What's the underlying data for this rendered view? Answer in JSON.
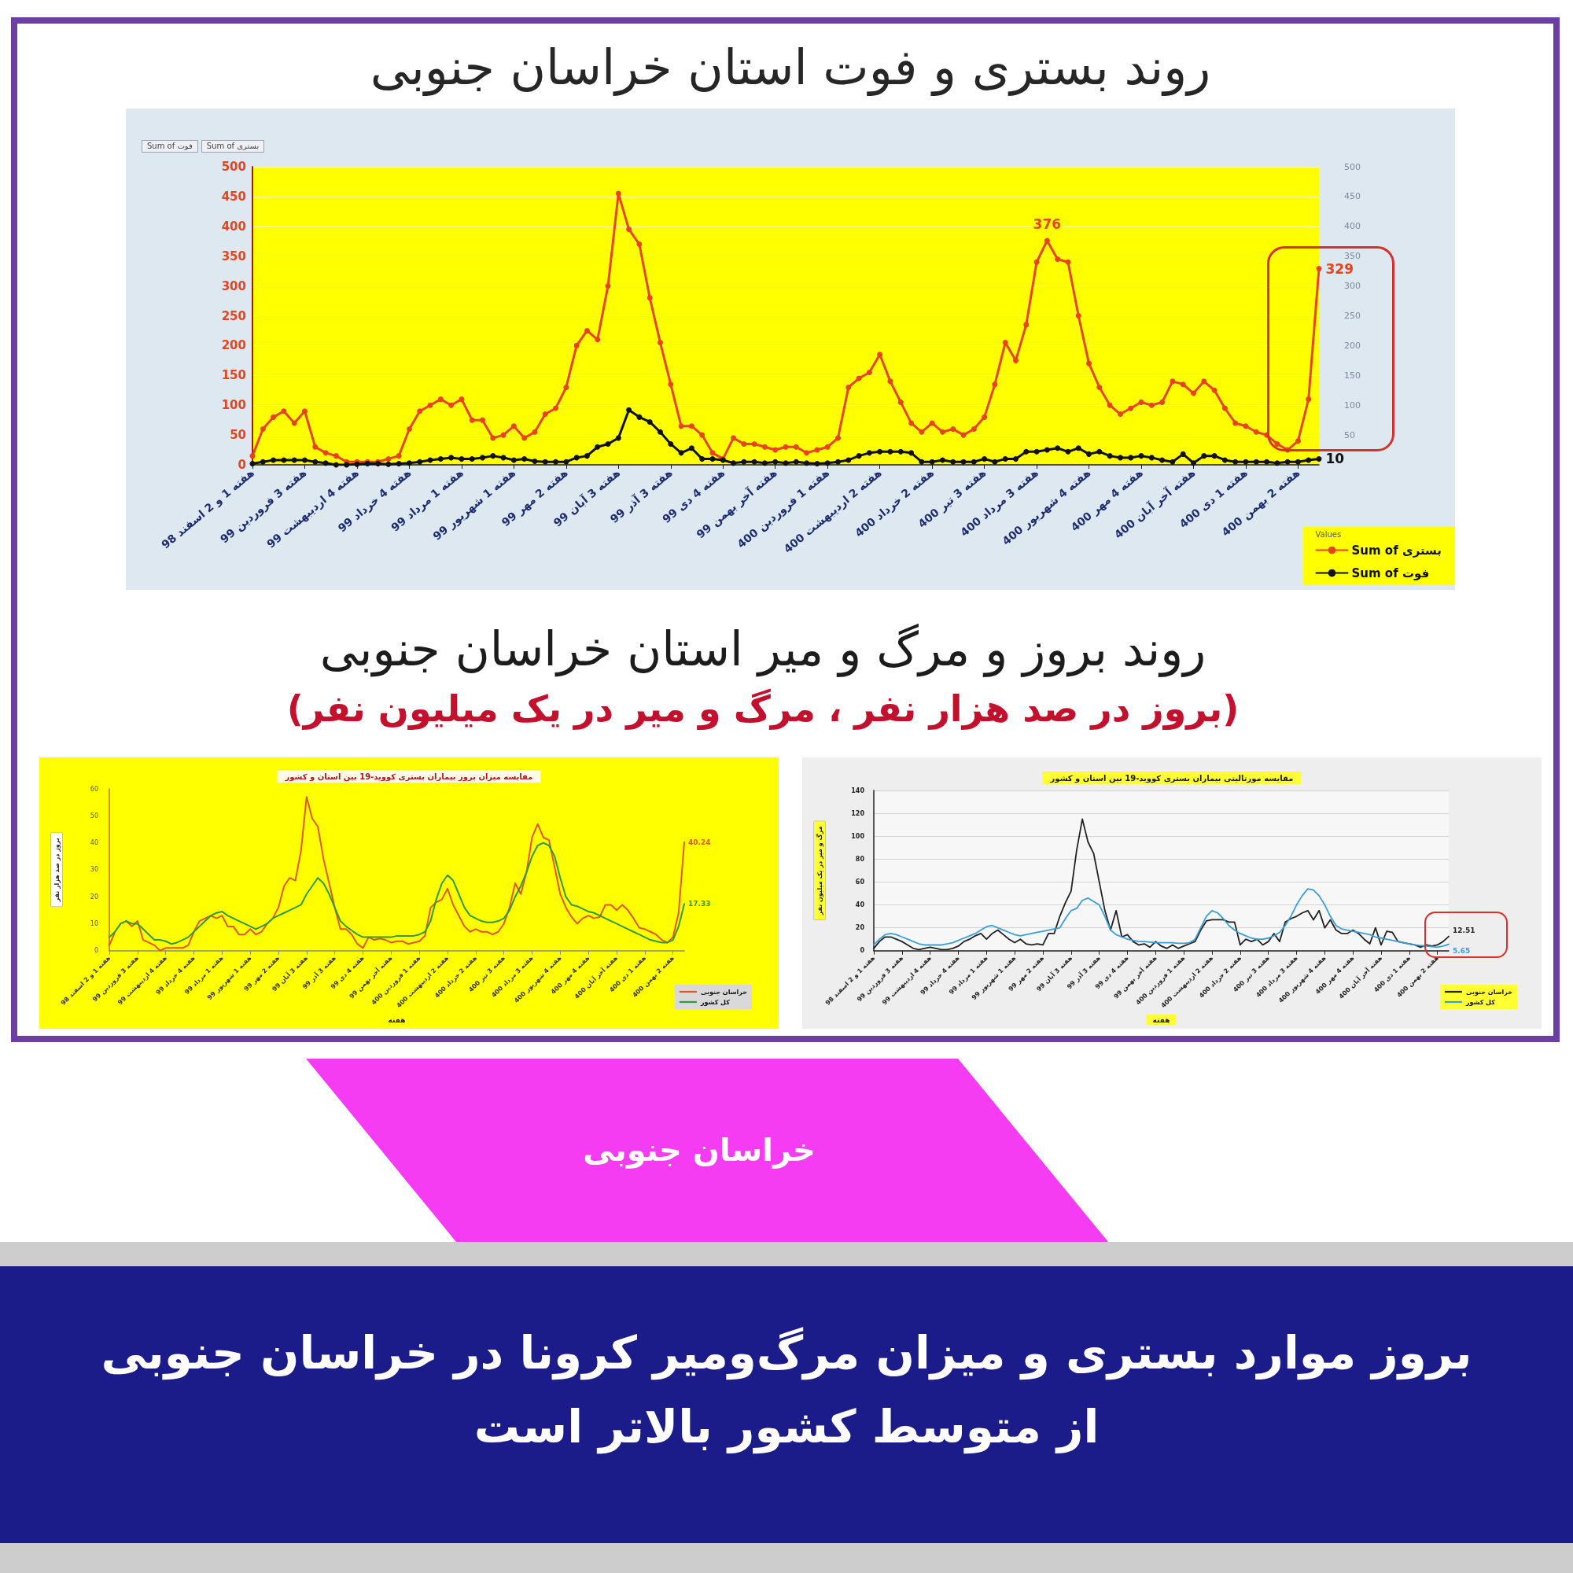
{
  "chart_data": [
    {
      "type": "line",
      "title": "روند بستری و فوت استان خراسان جنوبی",
      "annotations": [
        "Sum of فوت",
        "Sum of بستری"
      ],
      "categories": [
        "هفته 1 و 2 اسفند 98",
        null,
        null,
        null,
        null,
        "هفته 3 فروردین 99",
        null,
        null,
        null,
        null,
        "هفته 4 اردیبهشت 99",
        null,
        null,
        null,
        null,
        "هفته 4 خرداد 99",
        null,
        null,
        null,
        null,
        "هفته 1 مرداد 99",
        null,
        null,
        null,
        null,
        "هفته 1 شهریور 99",
        null,
        null,
        null,
        null,
        "هفته 2 مهر 99",
        null,
        null,
        null,
        null,
        "هفته 3 آبان 99",
        null,
        null,
        null,
        null,
        "هفته 3 آذر 99",
        null,
        null,
        null,
        null,
        "هفته 4 دی 99",
        null,
        null,
        null,
        null,
        "هفته آخر بهمن 99",
        null,
        null,
        null,
        null,
        "هفته 1 فروردین 400",
        null,
        null,
        null,
        null,
        "هفته 2 اردیبهشت 400",
        null,
        null,
        null,
        null,
        "هفته 2 خرداد 400",
        null,
        null,
        null,
        null,
        "هفته 3 تیر 400",
        null,
        null,
        null,
        null,
        "هفته 3 مرداد 400",
        null,
        null,
        null,
        null,
        "هفته 4 شهریور 400",
        null,
        null,
        null,
        null,
        "هفته 4 مهر 400",
        null,
        null,
        null,
        null,
        "هفته آخر آبان 400",
        null,
        null,
        null,
        null,
        "هفته 1 دی 400",
        null,
        null,
        null,
        null,
        "هفته 2 بهمن 400",
        null,
        null
      ],
      "series": [
        {
          "name": "Sum of بستری",
          "color": "#e8431c",
          "values": [
            15,
            60,
            80,
            90,
            70,
            90,
            30,
            20,
            15,
            5,
            5,
            5,
            5,
            10,
            15,
            60,
            90,
            100,
            110,
            100,
            110,
            75,
            75,
            45,
            50,
            65,
            45,
            55,
            85,
            95,
            130,
            200,
            225,
            210,
            300,
            455,
            395,
            370,
            280,
            205,
            135,
            65,
            65,
            50,
            20,
            10,
            45,
            35,
            35,
            30,
            25,
            30,
            30,
            20,
            25,
            30,
            45,
            130,
            145,
            155,
            185,
            140,
            105,
            70,
            55,
            70,
            55,
            60,
            50,
            60,
            80,
            135,
            205,
            175,
            235,
            340,
            376,
            345,
            340,
            250,
            170,
            130,
            100,
            85,
            95,
            105,
            100,
            105,
            140,
            135,
            120,
            140,
            125,
            95,
            70,
            65,
            55,
            50,
            35,
            25,
            40,
            110,
            329
          ],
          "value_labels": [
            null,
            null,
            null,
            null,
            null,
            null,
            null,
            null,
            null,
            null,
            null,
            null,
            null,
            null,
            null,
            null,
            null,
            null,
            null,
            null,
            null,
            null,
            null,
            null,
            null,
            null,
            null,
            null,
            null,
            null,
            null,
            null,
            null,
            null,
            null,
            null,
            null,
            null,
            null,
            null,
            null,
            null,
            null,
            null,
            null,
            null,
            null,
            null,
            null,
            null,
            null,
            null,
            null,
            null,
            null,
            null,
            null,
            null,
            null,
            null,
            null,
            null,
            null,
            null,
            null,
            null,
            null,
            null,
            null,
            null,
            null,
            null,
            null,
            null,
            null,
            null,
            "376",
            null,
            null,
            null,
            null,
            null,
            null,
            null,
            null,
            null,
            null,
            null,
            null,
            null,
            null,
            null,
            null,
            null,
            null,
            null,
            null,
            null,
            null,
            null,
            null,
            null,
            "329"
          ]
        },
        {
          "name": "Sum of فوت",
          "color": "#111111",
          "values": [
            2,
            5,
            8,
            8,
            8,
            8,
            5,
            3,
            0,
            0,
            1,
            2,
            2,
            1,
            2,
            3,
            5,
            8,
            10,
            12,
            10,
            10,
            12,
            15,
            12,
            8,
            10,
            6,
            5,
            5,
            5,
            12,
            15,
            30,
            35,
            45,
            92,
            80,
            72,
            55,
            35,
            20,
            28,
            10,
            10,
            8,
            3,
            5,
            5,
            3,
            5,
            3,
            5,
            3,
            2,
            3,
            5,
            8,
            15,
            20,
            22,
            22,
            22,
            20,
            5,
            5,
            8,
            5,
            5,
            5,
            10,
            5,
            10,
            10,
            22,
            22,
            25,
            28,
            22,
            28,
            18,
            22,
            15,
            12,
            12,
            15,
            12,
            8,
            5,
            18,
            3,
            15,
            15,
            8,
            5,
            5,
            5,
            5,
            3,
            5,
            5,
            8,
            10
          ],
          "value_labels": [
            null,
            null,
            null,
            null,
            null,
            null,
            null,
            null,
            null,
            null,
            null,
            null,
            null,
            null,
            null,
            null,
            null,
            null,
            null,
            null,
            null,
            null,
            null,
            null,
            null,
            null,
            null,
            null,
            null,
            null,
            null,
            null,
            null,
            null,
            null,
            null,
            null,
            null,
            null,
            null,
            null,
            null,
            null,
            null,
            null,
            null,
            null,
            null,
            null,
            null,
            null,
            null,
            null,
            null,
            null,
            null,
            null,
            null,
            null,
            null,
            null,
            null,
            null,
            null,
            null,
            null,
            null,
            null,
            null,
            null,
            null,
            null,
            null,
            null,
            null,
            null,
            null,
            null,
            null,
            null,
            null,
            null,
            null,
            null,
            null,
            null,
            null,
            null,
            null,
            null,
            null,
            null,
            null,
            null,
            null,
            null,
            null,
            null,
            null,
            null,
            null,
            null,
            "10"
          ]
        }
      ],
      "ylim": [
        0,
        500
      ],
      "yticks": [
        0,
        50,
        100,
        150,
        200,
        250,
        300,
        350,
        400,
        450,
        500
      ],
      "y2lim": [
        0,
        500
      ],
      "y2ticks": [
        50,
        100,
        150,
        200,
        250,
        300,
        350,
        400,
        450,
        500
      ],
      "grid": "y",
      "legend": "bottom right",
      "legend_title": "Values",
      "marker": "circle"
    },
    {
      "type": "other",
      "title": "روند بروز و مرگ و میر استان خراسان جنوبی",
      "subtitle": "(بروز در صد هزار نفر ، مرگ و میر در یک میلیون نفر)"
    },
    {
      "type": "line",
      "title": "مقایسه میزان بروز بیماران بستری کووید-19 بین استان و کشور",
      "xlabel": "هفته",
      "ylabel": "بروز در صد هزار نفر",
      "categories": [
        "هفته 1 و 2 اسفند 98",
        null,
        null,
        null,
        null,
        "هفته 3 فروردین 99",
        null,
        null,
        null,
        null,
        "هفته 4 اردیبهشت 99",
        null,
        null,
        null,
        null,
        "هفته 4 خرداد 99",
        null,
        null,
        null,
        null,
        "هفته 1 مرداد 99",
        null,
        null,
        null,
        null,
        "هفته 1 شهریور 99",
        null,
        null,
        null,
        null,
        "هفته 2 مهر 99",
        null,
        null,
        null,
        null,
        "هفته 3 آبان 99",
        null,
        null,
        null,
        null,
        "هفته 3 آذر 99",
        null,
        null,
        null,
        null,
        "هفته 4 دی 99",
        null,
        null,
        null,
        null,
        "هفته آخر بهمن 99",
        null,
        null,
        null,
        null,
        "هفته 1 فروردین 400",
        null,
        null,
        null,
        null,
        "هفته 2 اردیبهشت 400",
        null,
        null,
        null,
        null,
        "هفته 2 خرداد 400",
        null,
        null,
        null,
        null,
        "هفته 3 تیر 400",
        null,
        null,
        null,
        null,
        "هفته 3 مرداد 400",
        null,
        null,
        null,
        null,
        "هفته 4 شهریور 400",
        null,
        null,
        null,
        null,
        "هفته 4 مهر 400",
        null,
        null,
        null,
        null,
        "هفته آخر آبان 400",
        null,
        null,
        null,
        null,
        "هفته 1 دی 400",
        null,
        null,
        null,
        null,
        "هفته 2 بهمن 400",
        null,
        null
      ],
      "series": [
        {
          "name": "خراسان جنوبی",
          "color": "#e4561c",
          "values": [
            2,
            7,
            10,
            11,
            9,
            11,
            4,
            3,
            2,
            0,
            1,
            1,
            1,
            1,
            2,
            7,
            11,
            12,
            13,
            12,
            13,
            9,
            9,
            6,
            6,
            8,
            6,
            7,
            10,
            12,
            16,
            24,
            27,
            26,
            37,
            57,
            49,
            46,
            34,
            25,
            16,
            8,
            8,
            6,
            2.5,
            1,
            5,
            4,
            4.5,
            4,
            3,
            3.5,
            3.5,
            2.5,
            3,
            3.5,
            5.5,
            16,
            18,
            19,
            23,
            17,
            13,
            9,
            7,
            8,
            7,
            7,
            6,
            7,
            10,
            16,
            25,
            21,
            29,
            42,
            47,
            42,
            41,
            31,
            21,
            16,
            12.5,
            10,
            12,
            13,
            12,
            12.5,
            17,
            17,
            15,
            17,
            15,
            12,
            8.5,
            8,
            7,
            6,
            4,
            3,
            5,
            14,
            40.24
          ],
          "value_labels": [
            null,
            null,
            null,
            null,
            null,
            null,
            null,
            null,
            null,
            null,
            null,
            null,
            null,
            null,
            null,
            null,
            null,
            null,
            null,
            null,
            null,
            null,
            null,
            null,
            null,
            null,
            null,
            null,
            null,
            null,
            null,
            null,
            null,
            null,
            null,
            null,
            null,
            null,
            null,
            null,
            null,
            null,
            null,
            null,
            null,
            null,
            null,
            null,
            null,
            null,
            null,
            null,
            null,
            null,
            null,
            null,
            null,
            null,
            null,
            null,
            null,
            null,
            null,
            null,
            null,
            null,
            null,
            null,
            null,
            null,
            null,
            null,
            null,
            null,
            null,
            null,
            null,
            null,
            null,
            null,
            null,
            null,
            null,
            null,
            null,
            null,
            null,
            null,
            null,
            null,
            null,
            null,
            null,
            null,
            null,
            null,
            null,
            null,
            null,
            null,
            null,
            null,
            "40.24"
          ]
        },
        {
          "name": "کل کشور",
          "color": "#2f9a3c",
          "values": [
            5,
            7,
            10,
            11,
            10,
            10,
            8,
            6,
            4,
            4,
            3.5,
            2.5,
            3,
            4,
            5,
            7,
            9,
            11,
            13,
            14,
            14.5,
            13,
            12,
            11,
            10,
            9,
            8,
            9,
            10,
            12,
            13,
            14,
            15,
            16,
            17,
            21,
            24,
            27,
            25,
            21,
            16,
            11,
            9,
            7.5,
            6,
            5,
            5,
            5,
            5,
            5,
            5,
            5.5,
            5.5,
            5.5,
            5.5,
            6,
            7,
            11,
            19,
            25,
            28,
            26,
            21,
            16,
            13,
            12,
            11,
            10.5,
            10.5,
            11,
            12,
            15,
            20,
            24,
            29,
            35,
            39,
            40,
            39,
            35,
            27,
            20,
            17,
            16.5,
            15.5,
            14.5,
            14,
            13,
            12,
            11,
            10,
            9,
            8,
            7,
            6,
            5,
            4,
            3.5,
            3,
            3,
            4,
            9,
            17.33
          ],
          "value_labels": [
            null,
            null,
            null,
            null,
            null,
            null,
            null,
            null,
            null,
            null,
            null,
            null,
            null,
            null,
            null,
            null,
            null,
            null,
            null,
            null,
            null,
            null,
            null,
            null,
            null,
            null,
            null,
            null,
            null,
            null,
            null,
            null,
            null,
            null,
            null,
            null,
            null,
            null,
            null,
            null,
            null,
            null,
            null,
            null,
            null,
            null,
            null,
            null,
            null,
            null,
            null,
            null,
            null,
            null,
            null,
            null,
            null,
            null,
            null,
            null,
            null,
            null,
            null,
            null,
            null,
            null,
            null,
            null,
            null,
            null,
            null,
            null,
            null,
            null,
            null,
            null,
            null,
            null,
            null,
            null,
            null,
            null,
            null,
            null,
            null,
            null,
            null,
            null,
            null,
            null,
            null,
            null,
            null,
            null,
            null,
            null,
            null,
            null,
            null,
            null,
            null,
            null,
            "17.33"
          ]
        }
      ],
      "ylim": [
        0,
        60
      ],
      "yticks": [
        0,
        10,
        20,
        30,
        40,
        50,
        60
      ],
      "legend": "bottom right",
      "marker": "none"
    },
    {
      "type": "line",
      "title": "مقایسه مورتالیتی بیماران بستری کووید-19 بین استان و کشور",
      "xlabel": "هفته",
      "ylabel": "مرگ و میر در یک میلیون نفر",
      "categories": [
        "هفته 1 و 2 اسفند 98",
        null,
        null,
        null,
        null,
        "هفته 3 فروردین 99",
        null,
        null,
        null,
        null,
        "هفته 4 اردیبهشت 99",
        null,
        null,
        null,
        null,
        "هفته 4 خرداد 99",
        null,
        null,
        null,
        null,
        "هفته 1 مرداد 99",
        null,
        null,
        null,
        null,
        "هفته 1 شهریور 99",
        null,
        null,
        null,
        null,
        "هفته 2 مهر 99",
        null,
        null,
        null,
        null,
        "هفته 3 آبان 99",
        null,
        null,
        null,
        null,
        "هفته 3 آذر 99",
        null,
        null,
        null,
        null,
        "هفته 4 دی 99",
        null,
        null,
        null,
        null,
        "هفته آخر بهمن 99",
        null,
        null,
        null,
        null,
        "هفته 1 فروردین 400",
        null,
        null,
        null,
        null,
        "هفته 2 اردیبهشت 400",
        null,
        null,
        null,
        null,
        "هفته 2 خرداد 400",
        null,
        null,
        null,
        null,
        "هفته 3 تیر 400",
        null,
        null,
        null,
        null,
        "هفته 3 مرداد 400",
        null,
        null,
        null,
        null,
        "هفته 4 شهریور 400",
        null,
        null,
        null,
        null,
        "هفته 4 مهر 400",
        null,
        null,
        null,
        null,
        "هفته آخر آبان 400",
        null,
        null,
        null,
        null,
        "هفته 1 دی 400",
        null,
        null,
        null,
        null,
        "هفته 2 بهمن 400",
        null,
        null
      ],
      "series": [
        {
          "name": "خراسان جنوبی",
          "color": "#222222",
          "values": [
            2,
            8,
            12,
            12,
            10,
            8,
            5,
            2,
            1,
            2,
            3,
            2,
            1,
            1,
            2,
            4,
            8,
            10,
            13,
            15,
            10,
            15,
            18,
            14,
            10,
            7,
            10,
            6,
            5,
            6,
            5,
            15,
            15,
            30,
            42,
            52,
            88,
            115,
            95,
            85,
            60,
            35,
            18,
            35,
            12,
            14,
            8,
            5,
            6,
            3,
            8,
            4,
            2,
            5,
            2,
            4,
            6,
            8,
            18,
            26,
            27,
            27,
            27,
            25,
            25,
            5,
            10,
            8,
            10,
            5,
            8,
            15,
            8,
            25,
            28,
            30,
            33,
            35,
            27,
            35,
            20,
            27,
            18,
            15,
            15,
            18,
            15,
            10,
            6,
            20,
            5,
            17,
            16,
            8,
            7,
            6,
            5,
            3,
            5,
            4,
            5,
            8,
            12.51
          ],
          "value_labels": [
            null,
            null,
            null,
            null,
            null,
            null,
            null,
            null,
            null,
            null,
            null,
            null,
            null,
            null,
            null,
            null,
            null,
            null,
            null,
            null,
            null,
            null,
            null,
            null,
            null,
            null,
            null,
            null,
            null,
            null,
            null,
            null,
            null,
            null,
            null,
            null,
            null,
            null,
            null,
            null,
            null,
            null,
            null,
            null,
            null,
            null,
            null,
            null,
            null,
            null,
            null,
            null,
            null,
            null,
            null,
            null,
            null,
            null,
            null,
            null,
            null,
            null,
            null,
            null,
            null,
            null,
            null,
            null,
            null,
            null,
            null,
            null,
            null,
            null,
            null,
            null,
            null,
            null,
            null,
            null,
            null,
            null,
            null,
            null,
            null,
            null,
            null,
            null,
            null,
            null,
            null,
            null,
            null,
            null,
            null,
            null,
            null,
            null,
            null,
            null,
            null,
            null,
            "12.51"
          ]
        },
        {
          "name": "کل کشور",
          "color": "#3a9fd6",
          "values": [
            5,
            10,
            14,
            15,
            14,
            12,
            10,
            8,
            6,
            5,
            5,
            5,
            5,
            6,
            7,
            9,
            11,
            13,
            15,
            18,
            21,
            22,
            20,
            18,
            16,
            14,
            13,
            14,
            15,
            16,
            17,
            18,
            19,
            20,
            28,
            35,
            37,
            44,
            46,
            43,
            40,
            30,
            18,
            14,
            12,
            10,
            9,
            8,
            8,
            7.5,
            7,
            7,
            7,
            7,
            6.5,
            6.5,
            7,
            10,
            20,
            30,
            35,
            33,
            28,
            22,
            18,
            15,
            13,
            11,
            10,
            10,
            11,
            13,
            16,
            22,
            30,
            40,
            48,
            54,
            53,
            48,
            40,
            30,
            22,
            19,
            18,
            17,
            16,
            15,
            14,
            12,
            11,
            10,
            9,
            8,
            7,
            6,
            5,
            4.5,
            4,
            3.5,
            3,
            4,
            5.65
          ],
          "value_labels": [
            null,
            null,
            null,
            null,
            null,
            null,
            null,
            null,
            null,
            null,
            null,
            null,
            null,
            null,
            null,
            null,
            null,
            null,
            null,
            null,
            null,
            null,
            null,
            null,
            null,
            null,
            null,
            null,
            null,
            null,
            null,
            null,
            null,
            null,
            null,
            null,
            null,
            null,
            null,
            null,
            null,
            null,
            null,
            null,
            null,
            null,
            null,
            null,
            null,
            null,
            null,
            null,
            null,
            null,
            null,
            null,
            null,
            null,
            null,
            null,
            null,
            null,
            null,
            null,
            null,
            null,
            null,
            null,
            null,
            null,
            null,
            null,
            null,
            null,
            null,
            null,
            null,
            null,
            null,
            null,
            null,
            null,
            null,
            null,
            null,
            null,
            null,
            null,
            null,
            null,
            null,
            null,
            null,
            null,
            null,
            null,
            null,
            null,
            null,
            null,
            null,
            null,
            "5.65"
          ]
        }
      ],
      "ylim": [
        0,
        140
      ],
      "yticks": [
        0,
        20,
        40,
        60,
        80,
        100,
        120,
        140
      ],
      "grid": "y",
      "legend": "bottom right",
      "marker": "none"
    },
    {
      "type": "other",
      "annotations": [
        "خراسان جنوبی"
      ],
      "title": "بروز موارد بستری و میزان مرگ‌ومیر کرونا در خراسان جنوبی\nاز متوسط کشور بالاتر است"
    }
  ]
}
